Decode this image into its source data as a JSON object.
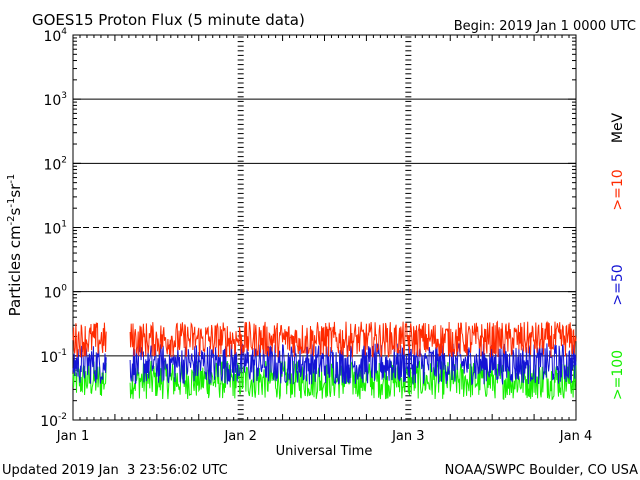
{
  "chart_data": {
    "type": "line",
    "title": "GOES15 Proton Flux (5 minute data)",
    "begin_label": "Begin: 2019 Jan 1 0000 UTC",
    "xlabel": "Universal Time",
    "ylabel": {
      "base": "Particles cm",
      "exp1": "-2",
      "s": "s",
      "exp2": "-1",
      "sr": "sr",
      "exp3": "-1"
    },
    "x_ticks": [
      "Jan 1",
      "Jan 2",
      "Jan 3",
      "Jan 4"
    ],
    "x_range_days": [
      0,
      3
    ],
    "y_scale": "log",
    "y_ticks": [
      {
        "base": "10",
        "exp": "-2",
        "value": 0.01
      },
      {
        "base": "10",
        "exp": "-1",
        "value": 0.1
      },
      {
        "base": "10",
        "exp": "0",
        "value": 1
      },
      {
        "base": "10",
        "exp": "1",
        "value": 10
      },
      {
        "base": "10",
        "exp": "2",
        "value": 100
      },
      {
        "base": "10",
        "exp": "3",
        "value": 1000
      },
      {
        "base": "10",
        "exp": "4",
        "value": 10000
      }
    ],
    "ylim": [
      0.01,
      10000
    ],
    "threshold_line": 10,
    "series": [
      {
        "name": ">=10",
        "color": "#ff2a00",
        "level": 0.18,
        "spread": 1.9
      },
      {
        "name": ">=50",
        "color": "#1414d4",
        "level": 0.075,
        "spread": 2.1
      },
      {
        "name": ">=100",
        "color": "#16f000",
        "level": 0.042,
        "spread": 2.0
      }
    ],
    "legend_unit": "MeV",
    "data_gap_days": [
      0.2,
      0.34
    ],
    "footer_left": "Updated 2019 Jan  3 23:56:02 UTC",
    "footer_right": "NOAA/SWPC Boulder, CO USA"
  }
}
